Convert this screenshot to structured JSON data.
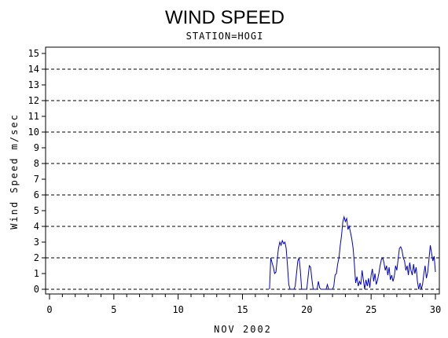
{
  "chart_data": {
    "type": "line",
    "title": "WIND SPEED",
    "subtitle": "STATION=HOGI",
    "xlabel": "NOV 2002",
    "ylabel": "Wind Speed m/sec",
    "xlim": [
      0,
      30
    ],
    "ylim": [
      0,
      15
    ],
    "x_ticks": [
      0,
      5,
      10,
      15,
      20,
      25,
      30
    ],
    "y_ticks": [
      0,
      1,
      2,
      3,
      4,
      5,
      6,
      7,
      8,
      9,
      10,
      11,
      12,
      13,
      14,
      15
    ],
    "gridlines_y": [
      0,
      2,
      4,
      6,
      8,
      10,
      12,
      14
    ],
    "grid": "horizontal dashed every 2",
    "line_color": "#0000cc",
    "series": [
      {
        "values_xy": [
          [
            17.1,
            0.0
          ],
          [
            17.2,
            2.0
          ],
          [
            17.3,
            1.7
          ],
          [
            17.4,
            1.4
          ],
          [
            17.5,
            1.0
          ],
          [
            17.6,
            1.1
          ],
          [
            17.7,
            1.9
          ],
          [
            17.8,
            2.6
          ],
          [
            17.9,
            3.0
          ],
          [
            18.0,
            2.8
          ],
          [
            18.1,
            3.1
          ],
          [
            18.2,
            2.9
          ],
          [
            18.3,
            3.0
          ],
          [
            18.4,
            2.6
          ],
          [
            18.5,
            1.5
          ],
          [
            18.6,
            0.3
          ],
          [
            18.7,
            0.0
          ],
          [
            19.0,
            0.0
          ],
          [
            19.1,
            0.2
          ],
          [
            19.3,
            1.8
          ],
          [
            19.4,
            2.0
          ],
          [
            19.5,
            1.2
          ],
          [
            19.6,
            0.0
          ],
          [
            20.0,
            0.0
          ],
          [
            20.1,
            0.8
          ],
          [
            20.2,
            1.5
          ],
          [
            20.3,
            1.4
          ],
          [
            20.4,
            0.6
          ],
          [
            20.5,
            0.0
          ],
          [
            20.8,
            0.0
          ],
          [
            20.9,
            0.5
          ],
          [
            21.0,
            0.1
          ],
          [
            21.1,
            0.0
          ],
          [
            21.5,
            0.0
          ],
          [
            21.6,
            0.3
          ],
          [
            21.7,
            0.0
          ],
          [
            22.0,
            0.0
          ],
          [
            22.1,
            0.2
          ],
          [
            22.2,
            0.9
          ],
          [
            22.3,
            1.0
          ],
          [
            22.4,
            1.6
          ],
          [
            22.5,
            2.0
          ],
          [
            22.6,
            2.8
          ],
          [
            22.7,
            3.4
          ],
          [
            22.8,
            4.3
          ],
          [
            22.9,
            4.6
          ],
          [
            23.0,
            4.3
          ],
          [
            23.1,
            4.5
          ],
          [
            23.2,
            3.8
          ],
          [
            23.3,
            4.0
          ],
          [
            23.4,
            3.6
          ],
          [
            23.5,
            3.2
          ],
          [
            23.6,
            2.6
          ],
          [
            23.7,
            1.6
          ],
          [
            23.8,
            0.4
          ],
          [
            23.9,
            0.8
          ],
          [
            24.0,
            0.2
          ],
          [
            24.1,
            0.5
          ],
          [
            24.2,
            0.3
          ],
          [
            24.3,
            1.2
          ],
          [
            24.4,
            0.6
          ],
          [
            24.5,
            0.0
          ],
          [
            24.6,
            0.6
          ],
          [
            24.7,
            0.2
          ],
          [
            24.8,
            0.7
          ],
          [
            24.9,
            0.1
          ],
          [
            25.0,
            0.9
          ],
          [
            25.1,
            1.3
          ],
          [
            25.2,
            0.5
          ],
          [
            25.3,
            1.0
          ],
          [
            25.4,
            0.3
          ],
          [
            25.5,
            0.6
          ],
          [
            25.6,
            1.0
          ],
          [
            25.7,
            1.5
          ],
          [
            25.8,
            1.9
          ],
          [
            25.9,
            2.0
          ],
          [
            26.0,
            1.7
          ],
          [
            26.1,
            1.2
          ],
          [
            26.2,
            1.5
          ],
          [
            26.3,
            0.9
          ],
          [
            26.4,
            1.4
          ],
          [
            26.5,
            0.6
          ],
          [
            26.6,
            0.9
          ],
          [
            26.7,
            0.5
          ],
          [
            26.8,
            0.8
          ],
          [
            26.9,
            1.5
          ],
          [
            27.0,
            1.2
          ],
          [
            27.1,
            1.9
          ],
          [
            27.2,
            2.6
          ],
          [
            27.3,
            2.7
          ],
          [
            27.4,
            2.5
          ],
          [
            27.5,
            2.0
          ],
          [
            27.6,
            1.8
          ],
          [
            27.7,
            1.2
          ],
          [
            27.8,
            1.5
          ],
          [
            27.9,
            0.9
          ],
          [
            28.0,
            1.7
          ],
          [
            28.1,
            1.2
          ],
          [
            28.2,
            0.9
          ],
          [
            28.3,
            1.6
          ],
          [
            28.4,
            1.0
          ],
          [
            28.5,
            1.4
          ],
          [
            28.6,
            0.5
          ],
          [
            28.7,
            0.0
          ],
          [
            28.8,
            0.4
          ],
          [
            28.9,
            0.0
          ],
          [
            29.0,
            0.3
          ],
          [
            29.1,
            1.0
          ],
          [
            29.2,
            1.5
          ],
          [
            29.3,
            0.7
          ],
          [
            29.4,
            1.1
          ],
          [
            29.5,
            1.9
          ],
          [
            29.6,
            2.8
          ],
          [
            29.7,
            2.3
          ],
          [
            29.8,
            1.8
          ],
          [
            29.9,
            2.1
          ],
          [
            30.0,
            1.1
          ]
        ]
      }
    ]
  }
}
